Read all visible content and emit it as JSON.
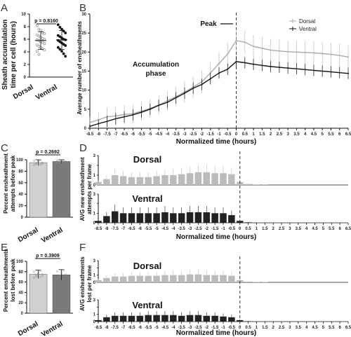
{
  "panels": {
    "A": {
      "label": "A",
      "ylabel_lines": [
        "Sheath accumulation",
        "time per cell (hours)"
      ],
      "categories": [
        "Dorsal",
        "Ventral"
      ],
      "ticks": [
        "0",
        "2",
        "4",
        "6",
        "8",
        "10"
      ],
      "p_value": "p = 0.8160"
    },
    "B": {
      "label": "B",
      "ylabel": "Average number of ensheathments",
      "xlabel": "Normalized time (hours)",
      "peak_label": "Peak",
      "phase_label_lines": [
        "Accumulation",
        "phase"
      ],
      "legend": [
        "Dorsal",
        "Ventral"
      ]
    },
    "C": {
      "label": "C",
      "ylabel_lines": [
        "Percent ensheathment",
        "attempts before peak"
      ],
      "categories": [
        "Dorsal",
        "Ventral"
      ],
      "ticks": [
        "0",
        "20",
        "40",
        "60",
        "80",
        "100"
      ],
      "p_value": "p = 0.2692"
    },
    "D": {
      "label": "D",
      "ylabel_lines": [
        "AVG new ensheathment",
        "attempts per frame"
      ],
      "xlabel": "Normalized time (hours)",
      "title_top": "Dorsal",
      "title_bottom": "Ventral"
    },
    "E": {
      "label": "E",
      "ylabel_lines": [
        "Percent ensheathments",
        "lost before peak"
      ],
      "categories": [
        "Dorsal",
        "Ventral"
      ],
      "ticks": [
        "0",
        "20",
        "40",
        "60",
        "80",
        "100"
      ],
      "p_value": "p = 0.3909"
    },
    "F": {
      "label": "F",
      "ylabel_lines": [
        "AVG ensheathments",
        "lost per frame"
      ],
      "xlabel": "Normalized time (hours)",
      "title_top": "Dorsal",
      "title_bottom": "Ventral"
    }
  },
  "chart_data": [
    {
      "panel": "A",
      "type": "scatter",
      "ylabel": "Sheath accumulation time per cell (hours)",
      "ylim": [
        0,
        10
      ],
      "categories": [
        "Dorsal",
        "Ventral"
      ],
      "series": [
        {
          "name": "Dorsal",
          "color": "#999999",
          "mean": 5.8,
          "sd": 1.4,
          "values": [
            8.2,
            7.6,
            7.4,
            7.0,
            6.9,
            6.7,
            6.5,
            6.3,
            6.1,
            6.0,
            5.9,
            5.8,
            5.6,
            5.5,
            5.3,
            5.1,
            4.9,
            4.7,
            4.5,
            4.3,
            4.1,
            3.6
          ]
        },
        {
          "name": "Ventral",
          "color": "#111111",
          "mean": 5.9,
          "sd": 1.5,
          "values": [
            8.3,
            7.9,
            7.6,
            7.3,
            7.0,
            6.6,
            6.4,
            6.2,
            6.0,
            5.9,
            5.8,
            5.6,
            5.4,
            5.2,
            5.0,
            4.7,
            4.4,
            4.1,
            3.7,
            3.3
          ]
        }
      ],
      "annotation": "p = 0.8160"
    },
    {
      "panel": "B",
      "type": "line",
      "xlabel": "Normalized time (hours)",
      "ylabel": "Average number of ensheathments",
      "xlim": [
        -8.5,
        6.5
      ],
      "ylim": [
        0,
        30
      ],
      "x_ticks": [
        -8.5,
        -8,
        -7.5,
        -7,
        -6.5,
        -6,
        -5.5,
        -5,
        -4.5,
        -4,
        -3.5,
        -3,
        -2.5,
        -2,
        -1.5,
        -1,
        -0.5,
        0,
        0.5,
        1,
        1.5,
        2,
        2.5,
        3,
        3.5,
        4,
        4.5,
        5,
        5.5,
        6,
        6.5
      ],
      "y_ticks": [
        0,
        5,
        10,
        15,
        20,
        25,
        30
      ],
      "peak_x": 0,
      "legend_position": "top-right",
      "series": [
        {
          "name": "Dorsal",
          "color": "#aaaaaa",
          "x": [
            -8.5,
            -8,
            -7.5,
            -7,
            -6.5,
            -6,
            -5.5,
            -5,
            -4.5,
            -4,
            -3.5,
            -3,
            -2.5,
            -2,
            -1.5,
            -1,
            -0.5,
            0,
            0.5,
            1,
            1.5,
            2,
            2.5,
            3,
            3.5,
            4,
            4.5,
            5,
            5.5,
            6,
            6.5
          ],
          "y": [
            1.5,
            2.2,
            3,
            3.2,
            3.6,
            3.8,
            4.5,
            5.2,
            6.1,
            7.2,
            8.3,
            9.5,
            10.8,
            12.2,
            14.5,
            17,
            19.5,
            23,
            22.6,
            21.5,
            21,
            20.5,
            20.3,
            20.1,
            20,
            19.9,
            19.8,
            19.6,
            19.4,
            19.1,
            18.7
          ],
          "err": [
            1.5,
            2,
            2.5,
            2.5,
            2.5,
            2.5,
            2.5,
            2.5,
            2.5,
            2.5,
            2.5,
            2.8,
            2.8,
            3,
            3,
            3,
            3,
            3,
            3,
            3,
            3,
            3,
            3,
            3,
            3,
            3,
            3,
            3,
            3,
            3,
            3
          ]
        },
        {
          "name": "Ventral",
          "color": "#111111",
          "x": [
            -8.5,
            -8,
            -7.5,
            -7,
            -6.5,
            -6,
            -5.5,
            -5,
            -4.5,
            -4,
            -3.5,
            -3,
            -2.5,
            -2,
            -1.5,
            -1,
            -0.5,
            0,
            0.5,
            1,
            1.5,
            2,
            2.5,
            3,
            3.5,
            4,
            4.5,
            5,
            5.5,
            6,
            6.5
          ],
          "y": [
            0.5,
            1.2,
            1.8,
            2.5,
            3,
            3.5,
            4.2,
            5,
            6,
            6.8,
            8,
            9.2,
            10.5,
            11.5,
            13,
            14.5,
            15.5,
            17.5,
            17.2,
            16.8,
            16.5,
            16.2,
            16,
            15.8,
            15.6,
            15.4,
            15.2,
            15,
            14.8,
            14.6,
            14.4
          ],
          "err": [
            0.5,
            1,
            1.5,
            1.5,
            1.5,
            1.5,
            1.5,
            1.5,
            1.5,
            1.5,
            1.5,
            1.5,
            1.5,
            1.5,
            1.5,
            1.5,
            1.5,
            1.5,
            1.5,
            1.5,
            1.5,
            1.5,
            1.5,
            1.5,
            1.5,
            1.5,
            1.5,
            1.5,
            1.5,
            1.5,
            1.5
          ]
        }
      ],
      "annotations": [
        "Peak",
        "Accumulation phase"
      ]
    },
    {
      "panel": "C",
      "type": "bar",
      "ylabel": "Percent ensheathment attempts before peak",
      "ylim": [
        0,
        100
      ],
      "categories": [
        "Dorsal",
        "Ventral"
      ],
      "values": [
        95,
        97
      ],
      "err": [
        5,
        3
      ],
      "colors": [
        "#d0d0d0",
        "#7a7a7a"
      ],
      "annotation": "p = 0.2692"
    },
    {
      "panel": "D",
      "type": "bar",
      "xlabel": "Normalized time (hours)",
      "ylabel": "AVG new ensheathment attempts per frame",
      "xlim": [
        -8.5,
        6.5
      ],
      "ylim": [
        0,
        3
      ],
      "x_ticks": [
        -8.5,
        -8,
        -7.5,
        -7,
        -6.5,
        -6,
        -5.5,
        -5,
        -4.5,
        -4,
        -3.5,
        -3,
        -2.5,
        -2,
        -1.5,
        -1,
        -0.5,
        0,
        0.5,
        1,
        1.5,
        2,
        2.5,
        3,
        3.5,
        4,
        4.5,
        5,
        5.5,
        6,
        6.5
      ],
      "peak_x": 0,
      "series": [
        {
          "name": "Dorsal",
          "color": "#bbbbbb",
          "x": [
            -8.5,
            -8,
            -7.5,
            -7,
            -6.5,
            -6,
            -5.5,
            -5,
            -4.5,
            -4,
            -3.5,
            -3,
            -2.5,
            -2,
            -1.5,
            -1,
            -0.5,
            0,
            0.5,
            1,
            1.5,
            2,
            2.5,
            3,
            3.5,
            4,
            4.5,
            5,
            5.5,
            6,
            6.5
          ],
          "y": [
            0.3,
            0.6,
            1,
            0.9,
            0.8,
            0.8,
            0.8,
            0.9,
            1,
            1,
            1.1,
            1.2,
            1.3,
            1.3,
            1.2,
            1.2,
            1.1,
            0.3,
            0.1,
            0.05,
            0.05,
            0,
            0,
            0,
            0,
            0,
            0,
            0,
            0,
            0,
            0
          ]
        },
        {
          "name": "Ventral",
          "color": "#222222",
          "x": [
            -8.5,
            -8,
            -7.5,
            -7,
            -6.5,
            -6,
            -5.5,
            -5,
            -4.5,
            -4,
            -3.5,
            -3,
            -2.5,
            -2,
            -1.5,
            -1,
            -0.5,
            0,
            0.5,
            1,
            1.5,
            2,
            2.5,
            3,
            3.5,
            4,
            4.5,
            5,
            5.5,
            6,
            6.5
          ],
          "y": [
            0.2,
            0.7,
            1.2,
            1,
            1,
            1,
            1,
            1,
            1.1,
            1,
            1,
            1.1,
            1.1,
            1.1,
            1,
            1,
            0.8,
            0.2,
            0.05,
            0,
            0,
            0,
            0,
            0,
            0,
            0,
            0,
            0,
            0,
            0,
            0
          ]
        }
      ]
    },
    {
      "panel": "E",
      "type": "bar",
      "ylabel": "Percent ensheathments lost before peak",
      "ylim": [
        0,
        100
      ],
      "categories": [
        "Dorsal",
        "Ventral"
      ],
      "values": [
        75,
        74
      ],
      "err": [
        8,
        10
      ],
      "colors": [
        "#d0d0d0",
        "#7a7a7a"
      ],
      "annotation": "p = 0.3909"
    },
    {
      "panel": "F",
      "type": "bar",
      "xlabel": "Normalized time (hours)",
      "ylabel": "AVG ensheathments lost per frame",
      "xlim": [
        -8.5,
        6.5
      ],
      "ylim": [
        0,
        3
      ],
      "x_ticks": [
        -8.5,
        -8,
        -7.5,
        -7,
        -6.5,
        -6,
        -5.5,
        -5,
        -4.5,
        -4,
        -3.5,
        -3,
        -2.5,
        -2,
        -1.5,
        -1,
        -0.5,
        0,
        0.5,
        1,
        1.5,
        2,
        2.5,
        3,
        3.5,
        4,
        4.5,
        5,
        5.5,
        6,
        6.5
      ],
      "peak_x": 0,
      "series": [
        {
          "name": "Dorsal",
          "color": "#bbbbbb",
          "x": [
            -8.5,
            -8,
            -7.5,
            -7,
            -6.5,
            -6,
            -5.5,
            -5,
            -4.5,
            -4,
            -3.5,
            -3,
            -2.5,
            -2,
            -1.5,
            -1,
            -0.5,
            0,
            0.5,
            1,
            1.5,
            2,
            2.5,
            3,
            3.5,
            4,
            4.5,
            5,
            5.5,
            6,
            6.5
          ],
          "y": [
            0.3,
            0.6,
            0.8,
            0.8,
            0.9,
            0.9,
            0.9,
            0.9,
            1,
            1,
            1,
            1.1,
            1.1,
            1,
            1,
            1,
            0.9,
            0.3,
            0.1,
            0.05,
            0.05,
            0,
            0,
            0,
            0,
            0,
            0,
            0,
            0,
            0,
            0
          ]
        },
        {
          "name": "Ventral",
          "color": "#222222",
          "x": [
            -8.5,
            -8,
            -7.5,
            -7,
            -6.5,
            -6,
            -5.5,
            -5,
            -4.5,
            -4,
            -3.5,
            -3,
            -2.5,
            -2,
            -1.5,
            -1,
            -0.5,
            0,
            0.5,
            1,
            1.5,
            2,
            2.5,
            3,
            3.5,
            4,
            4.5,
            5,
            5.5,
            6,
            6.5
          ],
          "y": [
            0.2,
            0.6,
            0.8,
            0.8,
            0.8,
            0.8,
            0.9,
            0.9,
            0.9,
            0.9,
            0.8,
            0.9,
            0.9,
            0.8,
            0.8,
            0.7,
            0.6,
            0.2,
            0.05,
            0,
            0,
            0,
            0,
            0,
            0,
            0,
            0,
            0,
            0,
            0,
            0
          ]
        }
      ]
    }
  ]
}
